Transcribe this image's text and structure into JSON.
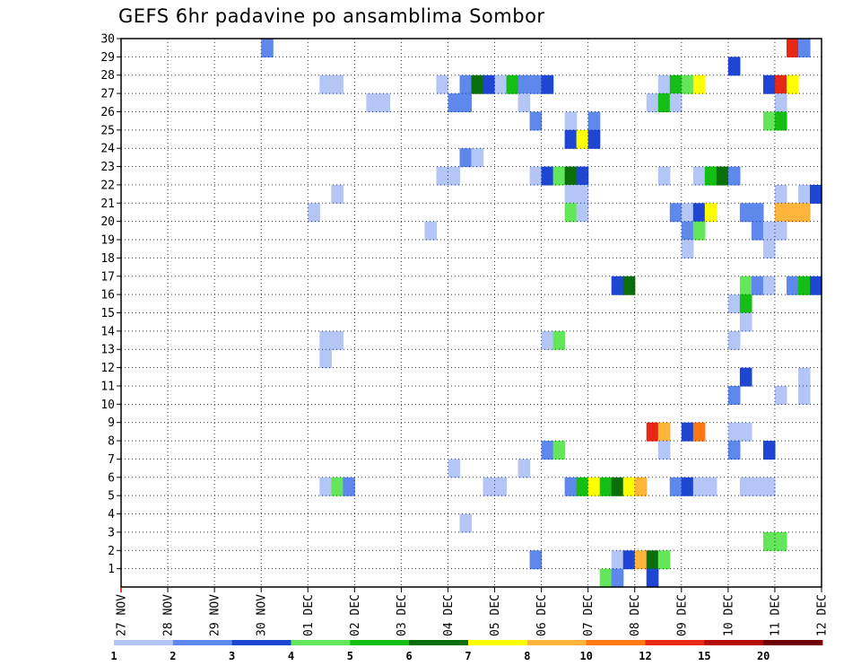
{
  "chart_data": {
    "type": "heatmap",
    "title": "GEFS 6hr padavine po ansamblima Sombor",
    "xlabel": "",
    "ylabel": "",
    "x_tick_labels": [
      "27 NOV",
      "28 NOV",
      "29 NOV",
      "30 NOV",
      "01 DEC",
      "02 DEC",
      "03 DEC",
      "04 DEC",
      "05 DEC",
      "06 DEC",
      "07 DEC",
      "08 DEC",
      "09 DEC",
      "10 DEC",
      "11 DEC",
      "12 DEC"
    ],
    "y_tick_labels": [
      "1",
      "2",
      "3",
      "4",
      "5",
      "6",
      "7",
      "8",
      "9",
      "10",
      "11",
      "12",
      "13",
      "14",
      "15",
      "16",
      "17",
      "18",
      "19",
      "20",
      "21",
      "22",
      "23",
      "24",
      "25",
      "26",
      "27",
      "28",
      "29",
      "30"
    ],
    "x_range_steps": [
      0,
      60
    ],
    "steps_per_day": 4,
    "y_range": [
      0,
      30
    ],
    "grid": true,
    "legend_position": "bottom",
    "colorbar": {
      "colors": [
        "#b4c6f5",
        "#5e88eb",
        "#1e46d2",
        "#64e65a",
        "#14be14",
        "#0a6e0a",
        "#ffff00",
        "#ffb43c",
        "#ff7814",
        "#e62814",
        "#b40a0a",
        "#6e0000"
      ],
      "labels": [
        "1",
        "2",
        "3",
        "4",
        "5",
        "6",
        "7",
        "8",
        "10",
        "12",
        "15",
        "20"
      ]
    },
    "cells": [
      [
        30,
        12,
        1
      ],
      [
        30,
        57,
        9
      ],
      [
        30,
        58,
        1
      ],
      [
        29,
        52,
        2
      ],
      [
        28,
        17,
        0
      ],
      [
        28,
        18,
        0
      ],
      [
        28,
        27,
        0
      ],
      [
        28,
        29,
        1
      ],
      [
        28,
        30,
        5
      ],
      [
        28,
        31,
        2
      ],
      [
        28,
        32,
        0
      ],
      [
        28,
        33,
        4
      ],
      [
        28,
        34,
        1
      ],
      [
        28,
        35,
        1
      ],
      [
        28,
        36,
        2
      ],
      [
        28,
        46,
        0
      ],
      [
        28,
        47,
        4
      ],
      [
        28,
        48,
        3
      ],
      [
        28,
        49,
        6
      ],
      [
        28,
        55,
        2
      ],
      [
        28,
        56,
        9
      ],
      [
        28,
        57,
        6
      ],
      [
        27,
        21,
        0
      ],
      [
        27,
        22,
        0
      ],
      [
        27,
        28,
        1
      ],
      [
        27,
        29,
        1
      ],
      [
        27,
        34,
        0
      ],
      [
        27,
        45,
        0
      ],
      [
        27,
        46,
        4
      ],
      [
        27,
        47,
        0
      ],
      [
        27,
        56,
        0
      ],
      [
        26,
        35,
        1
      ],
      [
        26,
        38,
        0
      ],
      [
        26,
        40,
        1
      ],
      [
        26,
        55,
        3
      ],
      [
        26,
        56,
        4
      ],
      [
        25,
        38,
        2
      ],
      [
        25,
        39,
        6
      ],
      [
        25,
        40,
        2
      ],
      [
        24,
        29,
        1
      ],
      [
        24,
        30,
        0
      ],
      [
        23,
        27,
        0
      ],
      [
        23,
        28,
        0
      ],
      [
        23,
        35,
        0
      ],
      [
        23,
        36,
        2
      ],
      [
        23,
        37,
        3
      ],
      [
        23,
        38,
        5
      ],
      [
        23,
        39,
        2
      ],
      [
        23,
        46,
        0
      ],
      [
        23,
        49,
        0
      ],
      [
        23,
        50,
        4
      ],
      [
        23,
        51,
        5
      ],
      [
        23,
        52,
        1
      ],
      [
        22,
        18,
        0
      ],
      [
        22,
        38,
        0
      ],
      [
        22,
        39,
        0
      ],
      [
        22,
        56,
        0
      ],
      [
        22,
        58,
        0
      ],
      [
        22,
        59,
        2
      ],
      [
        21,
        16,
        0
      ],
      [
        21,
        38,
        3
      ],
      [
        21,
        39,
        0
      ],
      [
        21,
        47,
        1
      ],
      [
        21,
        48,
        0
      ],
      [
        21,
        49,
        2
      ],
      [
        21,
        50,
        6
      ],
      [
        21,
        53,
        1
      ],
      [
        21,
        54,
        1
      ],
      [
        21,
        56,
        7
      ],
      [
        21,
        57,
        7
      ],
      [
        21,
        58,
        7
      ],
      [
        20,
        26,
        0
      ],
      [
        20,
        48,
        1
      ],
      [
        20,
        49,
        3
      ],
      [
        20,
        54,
        1
      ],
      [
        20,
        55,
        0
      ],
      [
        20,
        56,
        0
      ],
      [
        19,
        48,
        0
      ],
      [
        19,
        55,
        0
      ],
      [
        17,
        42,
        2
      ],
      [
        17,
        43,
        5
      ],
      [
        17,
        53,
        3
      ],
      [
        17,
        54,
        1
      ],
      [
        17,
        55,
        0
      ],
      [
        17,
        57,
        1
      ],
      [
        17,
        58,
        4
      ],
      [
        17,
        59,
        2
      ],
      [
        16,
        52,
        0
      ],
      [
        16,
        53,
        4
      ],
      [
        15,
        53,
        0
      ],
      [
        14,
        17,
        0
      ],
      [
        14,
        18,
        0
      ],
      [
        14,
        36,
        0
      ],
      [
        14,
        37,
        3
      ],
      [
        14,
        52,
        0
      ],
      [
        13,
        17,
        0
      ],
      [
        12,
        53,
        2
      ],
      [
        12,
        58,
        0
      ],
      [
        11,
        52,
        1
      ],
      [
        11,
        56,
        0
      ],
      [
        11,
        58,
        0
      ],
      [
        9,
        45,
        9
      ],
      [
        9,
        46,
        7
      ],
      [
        9,
        48,
        2
      ],
      [
        9,
        49,
        8
      ],
      [
        9,
        52,
        0
      ],
      [
        9,
        53,
        0
      ],
      [
        8,
        36,
        1
      ],
      [
        8,
        37,
        3
      ],
      [
        8,
        46,
        0
      ],
      [
        8,
        52,
        1
      ],
      [
        8,
        55,
        2
      ],
      [
        7,
        28,
        0
      ],
      [
        7,
        34,
        0
      ],
      [
        6,
        17,
        0
      ],
      [
        6,
        18,
        3
      ],
      [
        6,
        19,
        1
      ],
      [
        6,
        31,
        0
      ],
      [
        6,
        32,
        0
      ],
      [
        6,
        38,
        1
      ],
      [
        6,
        39,
        4
      ],
      [
        6,
        40,
        6
      ],
      [
        6,
        41,
        4
      ],
      [
        6,
        42,
        5
      ],
      [
        6,
        43,
        6
      ],
      [
        6,
        44,
        7
      ],
      [
        6,
        47,
        1
      ],
      [
        6,
        48,
        2
      ],
      [
        6,
        49,
        0
      ],
      [
        6,
        50,
        0
      ],
      [
        6,
        53,
        0
      ],
      [
        6,
        54,
        0
      ],
      [
        6,
        55,
        0
      ],
      [
        4,
        29,
        0
      ],
      [
        3,
        55,
        3
      ],
      [
        3,
        56,
        3
      ],
      [
        2,
        35,
        1
      ],
      [
        2,
        42,
        0
      ],
      [
        2,
        43,
        2
      ],
      [
        2,
        44,
        7
      ],
      [
        2,
        45,
        5
      ],
      [
        2,
        46,
        3
      ],
      [
        1,
        41,
        3
      ],
      [
        1,
        42,
        1
      ],
      [
        1,
        45,
        2
      ]
    ]
  }
}
